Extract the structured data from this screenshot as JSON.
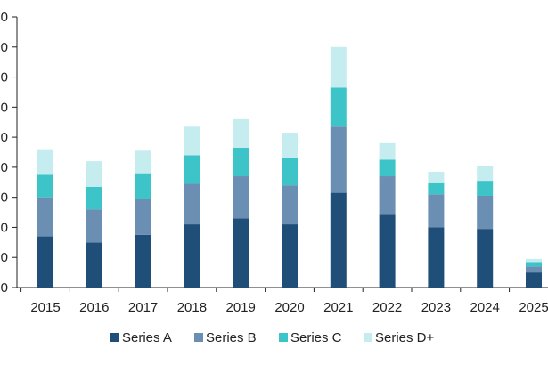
{
  "chart_data": {
    "type": "bar",
    "stacked": true,
    "categories": [
      "2015",
      "2016",
      "2017",
      "2018",
      "2019",
      "2020",
      "2021",
      "2022",
      "2023",
      "2024",
      "2025"
    ],
    "y_tick_labels": [
      "0",
      "0",
      "0",
      "0",
      "0",
      "0",
      "0",
      "0",
      "0",
      "0"
    ],
    "ylim": [
      0,
      9
    ],
    "grid": false,
    "legend_position": "bottom",
    "series": [
      {
        "name": "Series A",
        "color": "#1f4e79",
        "values": [
          1.7,
          1.5,
          1.75,
          2.1,
          2.3,
          2.1,
          3.15,
          2.45,
          2.0,
          1.95,
          0.5
        ]
      },
      {
        "name": "Series B",
        "color": "#6a8fb3",
        "values": [
          1.3,
          1.1,
          1.2,
          1.35,
          1.4,
          1.3,
          2.2,
          1.25,
          1.1,
          1.1,
          0.2
        ]
      },
      {
        "name": "Series C",
        "color": "#3cc4c9",
        "values": [
          0.75,
          0.75,
          0.85,
          0.95,
          0.95,
          0.9,
          1.3,
          0.55,
          0.4,
          0.5,
          0.15
        ]
      },
      {
        "name": "Series D+",
        "color": "#c5ecef",
        "values": [
          0.85,
          0.85,
          0.75,
          0.95,
          0.95,
          0.85,
          1.35,
          0.55,
          0.35,
          0.5,
          0.1
        ]
      }
    ]
  }
}
